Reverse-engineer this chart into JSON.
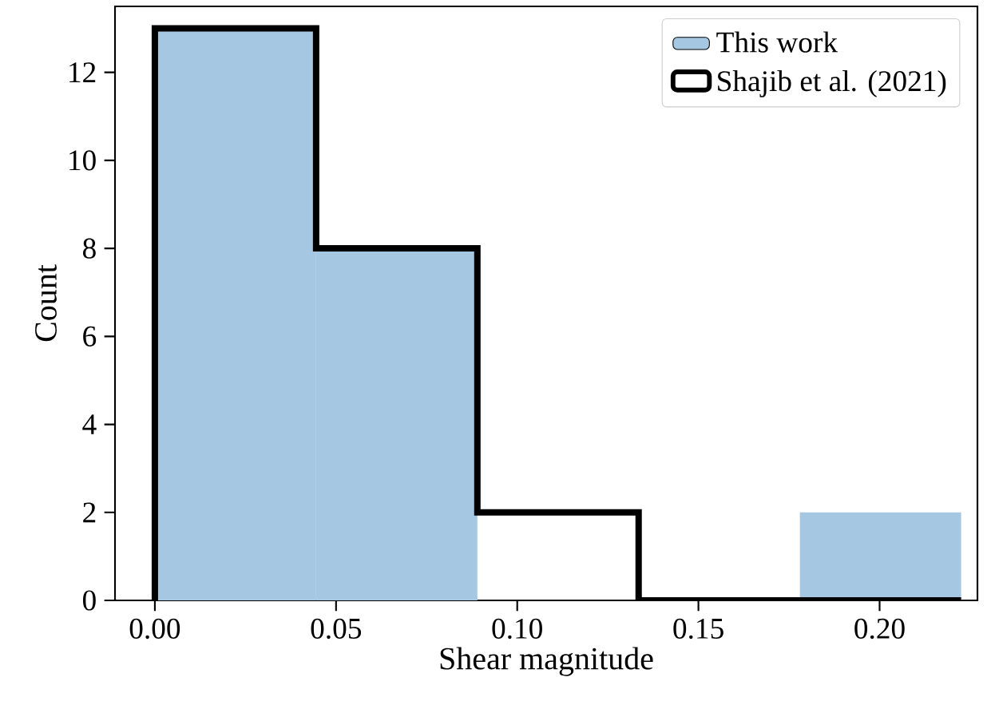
{
  "chart_data": {
    "type": "histogram",
    "xlabel": "Shear magnitude",
    "ylabel": "Count",
    "bins": [
      0,
      0.0445,
      0.089,
      0.1335,
      0.178,
      0.2225
    ],
    "series": [
      {
        "name": "This work",
        "color": "#a5c7e1",
        "values": [
          13,
          8,
          0,
          0,
          2
        ]
      },
      {
        "name": "Shajib et al. (2021)",
        "color": "#000000",
        "type": "step",
        "x": [
          0,
          0,
          0.0445,
          0.089,
          0.1335,
          0.178,
          0.2225
        ],
        "values": [
          0,
          13,
          8,
          2,
          0,
          0,
          0
        ]
      }
    ],
    "xlim": [
      -0.011,
      0.227
    ],
    "ylim": [
      0,
      13.5
    ],
    "xticks": [
      {
        "value": 0,
        "label": "0.00"
      },
      {
        "value": 0.05,
        "label": "0.05"
      },
      {
        "value": 0.1,
        "label": "0.10"
      },
      {
        "value": 0.15,
        "label": "0.15"
      },
      {
        "value": 0.2,
        "label": "0.20"
      }
    ],
    "yticks": [
      0,
      2,
      4,
      6,
      8,
      10,
      12
    ],
    "grid": false,
    "legend": "top right"
  }
}
